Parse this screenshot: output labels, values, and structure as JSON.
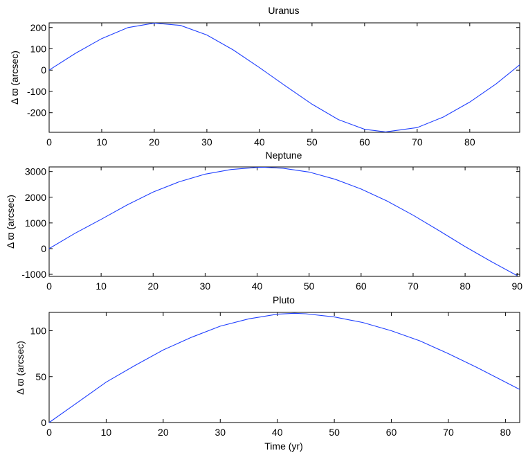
{
  "chart_data": [
    {
      "type": "line",
      "title": "Uranus",
      "ylabel": "Δ ϖ (arcsec)",
      "xlabel": "",
      "xlim": [
        0,
        89.5
      ],
      "ylim": [
        -292,
        222
      ],
      "xticks": [
        0,
        10,
        20,
        30,
        40,
        50,
        60,
        70,
        80
      ],
      "yticks": [
        -200,
        -100,
        0,
        100,
        200
      ],
      "grid": false,
      "color": "#1f3fff",
      "series": [
        {
          "x": [
            0,
            5,
            10,
            15,
            20,
            25,
            30,
            35,
            40,
            45,
            50,
            55,
            60,
            64,
            70,
            75,
            80,
            85,
            89.5
          ],
          "y": [
            0,
            79,
            148,
            200,
            221,
            210,
            165,
            95,
            12,
            -75,
            -160,
            -232,
            -278,
            -290,
            -270,
            -220,
            -150,
            -65,
            25
          ]
        }
      ]
    },
    {
      "type": "line",
      "title": "Neptune",
      "ylabel": "Δ ϖ (arcsec)",
      "xlabel": "",
      "xlim": [
        0,
        90.5
      ],
      "ylim": [
        -1080,
        3180
      ],
      "xticks": [
        0,
        10,
        20,
        30,
        40,
        50,
        60,
        70,
        80,
        90
      ],
      "yticks": [
        -1000,
        0,
        1000,
        2000,
        3000
      ],
      "grid": false,
      "color": "#1f3fff",
      "series": [
        {
          "x": [
            0,
            5,
            10,
            15,
            20,
            25,
            30,
            35,
            40,
            41.5,
            45,
            50,
            55,
            60,
            65,
            70,
            75,
            80,
            85,
            90
          ],
          "y": [
            0,
            600,
            1140,
            1700,
            2200,
            2600,
            2900,
            3080,
            3160,
            3165,
            3130,
            2980,
            2700,
            2320,
            1850,
            1300,
            700,
            80,
            -500,
            -1050
          ]
        }
      ]
    },
    {
      "type": "line",
      "title": "Pluto",
      "ylabel": "Δ ϖ (arcsec)",
      "xlabel": "Time (yr)",
      "xlim": [
        0,
        82.5
      ],
      "ylim": [
        0,
        120
      ],
      "xticks": [
        0,
        10,
        20,
        30,
        40,
        50,
        60,
        70,
        80
      ],
      "yticks": [
        0,
        50,
        100
      ],
      "grid": false,
      "color": "#1f3fff",
      "series": [
        {
          "x": [
            0,
            5,
            10,
            15,
            20,
            25,
            30,
            35,
            40,
            43,
            45,
            50,
            55,
            60,
            65,
            70,
            75,
            82.5
          ],
          "y": [
            0,
            22,
            44,
            62,
            79,
            93,
            105,
            113,
            118,
            119,
            118.5,
            115,
            109,
            100,
            89,
            75,
            60,
            36
          ]
        }
      ]
    }
  ]
}
